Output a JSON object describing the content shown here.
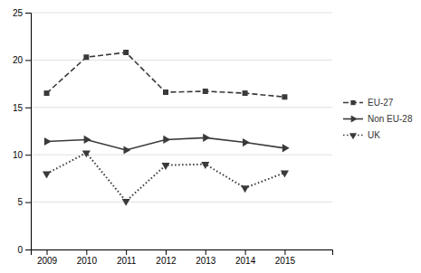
{
  "chart_data": {
    "type": "line",
    "x": [
      2009,
      2010,
      2011,
      2012,
      2013,
      2014,
      2015
    ],
    "series": [
      {
        "name": "EU-27",
        "color": "#3a3a3a",
        "marker": "square",
        "line_style": "dashed",
        "values": [
          16.5,
          20.3,
          20.8,
          16.6,
          16.7,
          16.5,
          16.1
        ]
      },
      {
        "name": "Non EU-28",
        "color": "#3a3a3a",
        "marker": "triangle-right",
        "line_style": "solid",
        "values": [
          11.4,
          11.6,
          10.5,
          11.6,
          11.8,
          11.3,
          10.7
        ]
      },
      {
        "name": "UK",
        "color": "#3a3a3a",
        "marker": "triangle-down",
        "line_style": "dotted",
        "values": [
          8.0,
          10.2,
          5.1,
          8.9,
          9.0,
          6.5,
          8.1
        ]
      }
    ],
    "xlim": [
      2008.6,
      2016.2
    ],
    "xticks": [
      2009,
      2010,
      2011,
      2012,
      2013,
      2014,
      2015
    ],
    "ylim": [
      0,
      25
    ],
    "yticks": [
      0,
      5,
      10,
      15,
      20,
      25
    ],
    "grid": true,
    "legend": "right"
  }
}
